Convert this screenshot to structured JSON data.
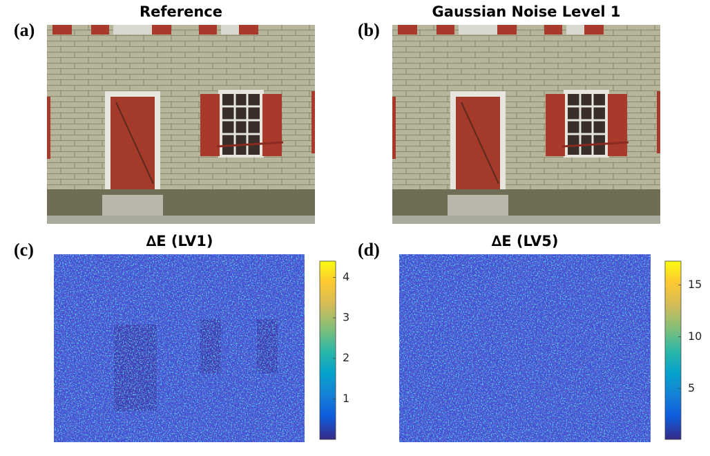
{
  "panels": [
    {
      "label": "(a)",
      "title": "Reference"
    },
    {
      "label": "(b)",
      "title": "Gaussian Noise Level 1"
    },
    {
      "label": "(c)",
      "title": "∆E (LV1)",
      "colorbar": {
        "clim": [
          0,
          4.4
        ],
        "ticks": [
          1,
          2,
          3,
          4
        ]
      }
    },
    {
      "label": "(d)",
      "title": "∆E (LV5)",
      "colorbar": {
        "clim": [
          0.1,
          17.3
        ],
        "ticks": [
          5,
          10,
          15
        ]
      }
    }
  ]
}
